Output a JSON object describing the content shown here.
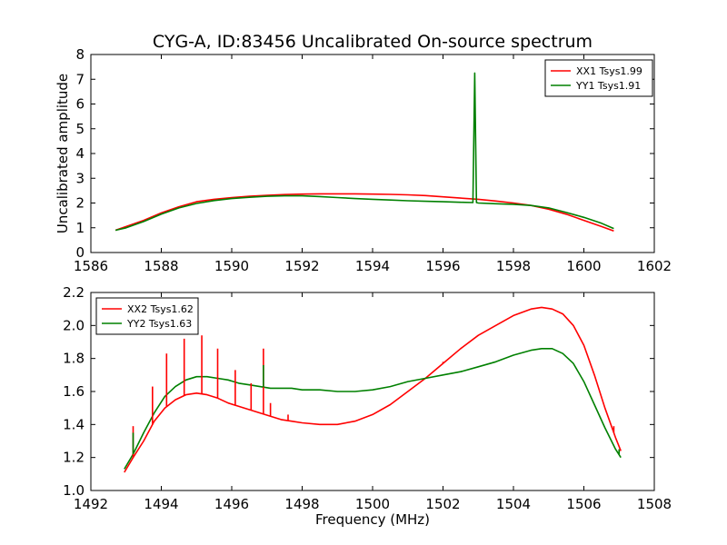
{
  "chart_data": [
    {
      "type": "line",
      "title": "CYG-A, ID:83456 Uncalibrated On-source spectrum",
      "xlabel": "",
      "ylabel": "Uncalibrated amplitude",
      "xlim": [
        1586,
        1602
      ],
      "ylim": [
        0,
        8
      ],
      "xticks": [
        "1586",
        "1588",
        "1590",
        "1592",
        "1594",
        "1596",
        "1598",
        "1600",
        "1602"
      ],
      "yticks": [
        "0",
        "1",
        "2",
        "3",
        "4",
        "5",
        "6",
        "7",
        "8"
      ],
      "legend_position": "top-right",
      "grid": false,
      "series": [
        {
          "name": "XX1 Tsys1.99",
          "color": "#ff0000",
          "x": [
            1586.7,
            1587.0,
            1587.5,
            1588.0,
            1588.5,
            1589.0,
            1589.5,
            1590.0,
            1590.5,
            1591.0,
            1591.5,
            1592.0,
            1592.5,
            1593.0,
            1593.5,
            1594.0,
            1594.5,
            1595.0,
            1595.5,
            1596.0,
            1596.5,
            1597.0,
            1597.5,
            1598.0,
            1598.5,
            1599.0,
            1599.5,
            1600.0,
            1600.5,
            1600.85
          ],
          "y": [
            0.9,
            1.05,
            1.3,
            1.6,
            1.85,
            2.05,
            2.15,
            2.22,
            2.27,
            2.31,
            2.34,
            2.36,
            2.37,
            2.37,
            2.37,
            2.36,
            2.35,
            2.33,
            2.3,
            2.25,
            2.2,
            2.15,
            2.08,
            2.0,
            1.9,
            1.75,
            1.55,
            1.3,
            1.05,
            0.87
          ]
        },
        {
          "name": "YY1 Tsys1.91",
          "color": "#008000",
          "x": [
            1586.7,
            1587.0,
            1587.5,
            1588.0,
            1588.5,
            1589.0,
            1589.5,
            1590.0,
            1590.5,
            1591.0,
            1591.5,
            1592.0,
            1592.5,
            1593.0,
            1593.5,
            1594.0,
            1594.5,
            1595.0,
            1595.5,
            1596.0,
            1596.5,
            1596.85,
            1596.9,
            1596.95,
            1597.0,
            1597.5,
            1598.0,
            1598.5,
            1599.0,
            1599.5,
            1600.0,
            1600.5,
            1600.85
          ],
          "y": [
            0.9,
            1.0,
            1.25,
            1.55,
            1.8,
            1.98,
            2.1,
            2.18,
            2.23,
            2.27,
            2.29,
            2.29,
            2.26,
            2.22,
            2.18,
            2.15,
            2.12,
            2.09,
            2.07,
            2.05,
            2.03,
            2.02,
            7.25,
            2.02,
            2.0,
            1.97,
            1.95,
            1.9,
            1.8,
            1.62,
            1.42,
            1.18,
            0.97
          ]
        }
      ]
    },
    {
      "type": "line",
      "title": "",
      "xlabel": "Frequency (MHz)",
      "ylabel": "",
      "xlim": [
        1492,
        1508
      ],
      "ylim": [
        1.0,
        2.2
      ],
      "xticks": [
        "1492",
        "1494",
        "1496",
        "1498",
        "1500",
        "1502",
        "1504",
        "1506",
        "1508"
      ],
      "yticks": [
        "1.0",
        "1.2",
        "1.4",
        "1.6",
        "1.8",
        "2.0",
        "2.2"
      ],
      "legend_position": "top-left",
      "grid": false,
      "series": [
        {
          "name": "XX2 Tsys1.62",
          "color": "#ff0000",
          "x": [
            1492.95,
            1493.2,
            1493.5,
            1493.8,
            1494.1,
            1494.4,
            1494.7,
            1495.0,
            1495.3,
            1495.6,
            1495.9,
            1496.2,
            1496.5,
            1496.8,
            1497.1,
            1497.4,
            1497.7,
            1498.0,
            1498.5,
            1499.0,
            1499.5,
            1500.0,
            1500.5,
            1501.0,
            1501.5,
            1502.0,
            1502.5,
            1503.0,
            1503.5,
            1504.0,
            1504.5,
            1504.8,
            1505.1,
            1505.4,
            1505.7,
            1506.0,
            1506.3,
            1506.6,
            1506.9,
            1507.05
          ],
          "y": [
            1.11,
            1.2,
            1.3,
            1.42,
            1.5,
            1.55,
            1.58,
            1.59,
            1.58,
            1.56,
            1.53,
            1.51,
            1.49,
            1.47,
            1.45,
            1.43,
            1.42,
            1.41,
            1.4,
            1.4,
            1.42,
            1.46,
            1.52,
            1.6,
            1.68,
            1.77,
            1.86,
            1.94,
            2.0,
            2.06,
            2.1,
            2.11,
            2.1,
            2.07,
            2.0,
            1.88,
            1.7,
            1.5,
            1.32,
            1.24
          ]
        },
        {
          "name": "YY2 Tsys1.63",
          "color": "#008000",
          "x": [
            1492.95,
            1493.2,
            1493.5,
            1493.8,
            1494.1,
            1494.4,
            1494.7,
            1495.0,
            1495.3,
            1495.6,
            1495.9,
            1496.2,
            1496.5,
            1496.8,
            1497.1,
            1497.4,
            1497.7,
            1498.0,
            1498.5,
            1499.0,
            1499.5,
            1500.0,
            1500.5,
            1501.0,
            1501.5,
            1502.0,
            1502.5,
            1503.0,
            1503.5,
            1504.0,
            1504.5,
            1504.8,
            1505.1,
            1505.4,
            1505.7,
            1506.0,
            1506.3,
            1506.6,
            1506.9,
            1507.05
          ],
          "y": [
            1.13,
            1.22,
            1.35,
            1.47,
            1.57,
            1.63,
            1.67,
            1.69,
            1.69,
            1.68,
            1.67,
            1.65,
            1.64,
            1.63,
            1.62,
            1.62,
            1.62,
            1.61,
            1.61,
            1.6,
            1.6,
            1.61,
            1.63,
            1.66,
            1.68,
            1.7,
            1.72,
            1.75,
            1.78,
            1.82,
            1.85,
            1.86,
            1.86,
            1.83,
            1.77,
            1.66,
            1.52,
            1.38,
            1.25,
            1.2
          ]
        }
      ],
      "spikes": [
        {
          "series": 0,
          "x": 1493.2,
          "y": 1.39
        },
        {
          "series": 0,
          "x": 1493.75,
          "y": 1.63
        },
        {
          "series": 0,
          "x": 1494.15,
          "y": 1.83
        },
        {
          "series": 0,
          "x": 1494.65,
          "y": 1.92
        },
        {
          "series": 0,
          "x": 1495.15,
          "y": 1.94
        },
        {
          "series": 0,
          "x": 1495.6,
          "y": 1.86
        },
        {
          "series": 0,
          "x": 1496.1,
          "y": 1.73
        },
        {
          "series": 0,
          "x": 1496.55,
          "y": 1.65
        },
        {
          "series": 0,
          "x": 1496.9,
          "y": 1.86
        },
        {
          "series": 0,
          "x": 1497.1,
          "y": 1.53
        },
        {
          "series": 0,
          "x": 1497.6,
          "y": 1.46
        },
        {
          "series": 0,
          "x": 1502.0,
          "y": 1.78
        },
        {
          "series": 0,
          "x": 1506.85,
          "y": 1.39
        },
        {
          "series": 1,
          "x": 1493.2,
          "y": 1.35
        },
        {
          "series": 1,
          "x": 1496.9,
          "y": 1.76
        },
        {
          "series": 1,
          "x": 1507.0,
          "y": 1.25
        }
      ]
    }
  ]
}
